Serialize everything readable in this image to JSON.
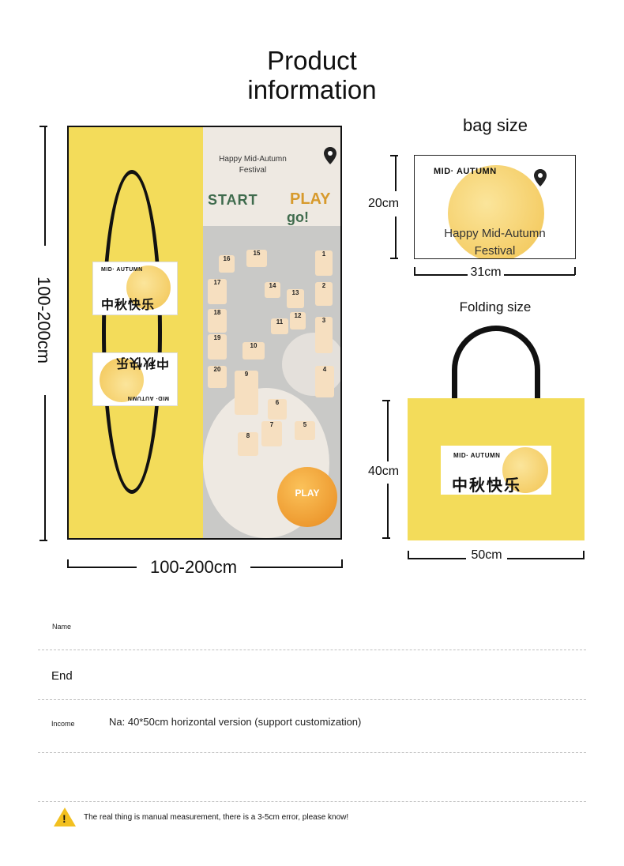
{
  "title": "Product\ninformation",
  "poster": {
    "header_text": "Happy Mid-Autumn\nFestival",
    "start_label": "START",
    "play_label": "PLAY",
    "go_label": "go!",
    "play_button_label": "PLAY",
    "card_brand": "MID· AUTUMN",
    "card_cn": "中秋快乐",
    "tiles": [
      "1",
      "2",
      "3",
      "4",
      "5",
      "6",
      "7",
      "8",
      "9",
      "10",
      "11",
      "12",
      "13",
      "14",
      "15",
      "16",
      "17",
      "18",
      "19",
      "20"
    ],
    "height_label": "100-200cm",
    "width_label": "100-200cm"
  },
  "bag_size": {
    "heading": "bag size",
    "card_brand": "MID· AUTUMN",
    "card_text": "Happy Mid-Autumn\nFestival",
    "height_label": "20cm",
    "width_label": "31cm"
  },
  "folding_size": {
    "heading": "Folding size",
    "card_brand": "MID· AUTUMN",
    "card_cn": "中秋快乐",
    "height_label": "40cm",
    "width_label": "50cm"
  },
  "info_rows": [
    {
      "label": "Name",
      "value": ""
    },
    {
      "label": "End",
      "value": ""
    },
    {
      "label": "Income",
      "value": "Na: 40*50cm horizontal version (support customization)"
    }
  ],
  "notice": "The real thing is manual measurement, there is a 3-5cm error, please know!",
  "colors": {
    "yellow": "#f3dc5a",
    "moon": "#f2c452",
    "grey": "#c9c9c7"
  }
}
